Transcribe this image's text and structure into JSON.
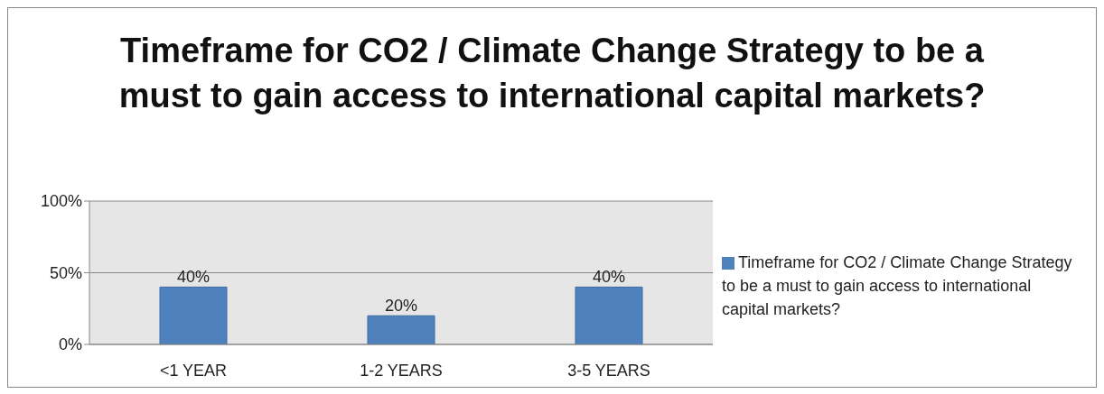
{
  "chart_data": {
    "type": "bar",
    "title": "Timeframe for CO2 / Climate Change Strategy to be a must to gain access to international capital markets?",
    "categories": [
      "<1 YEAR",
      "1-2 YEARS",
      "3-5 YEARS"
    ],
    "series": [
      {
        "name": "Timeframe for CO2 / Climate Change Strategy to be a must to gain access to international capital markets?",
        "color": "#4f81bd",
        "values": [
          40,
          20,
          40
        ],
        "value_labels": [
          "40%",
          "20%",
          "40%"
        ]
      }
    ],
    "ylim": [
      0,
      100
    ],
    "yticks": [
      {
        "value": 0,
        "label": "0%"
      },
      {
        "value": 50,
        "label": "50%"
      },
      {
        "value": 100,
        "label": "100%"
      }
    ],
    "grid": "y",
    "legend": "right"
  }
}
